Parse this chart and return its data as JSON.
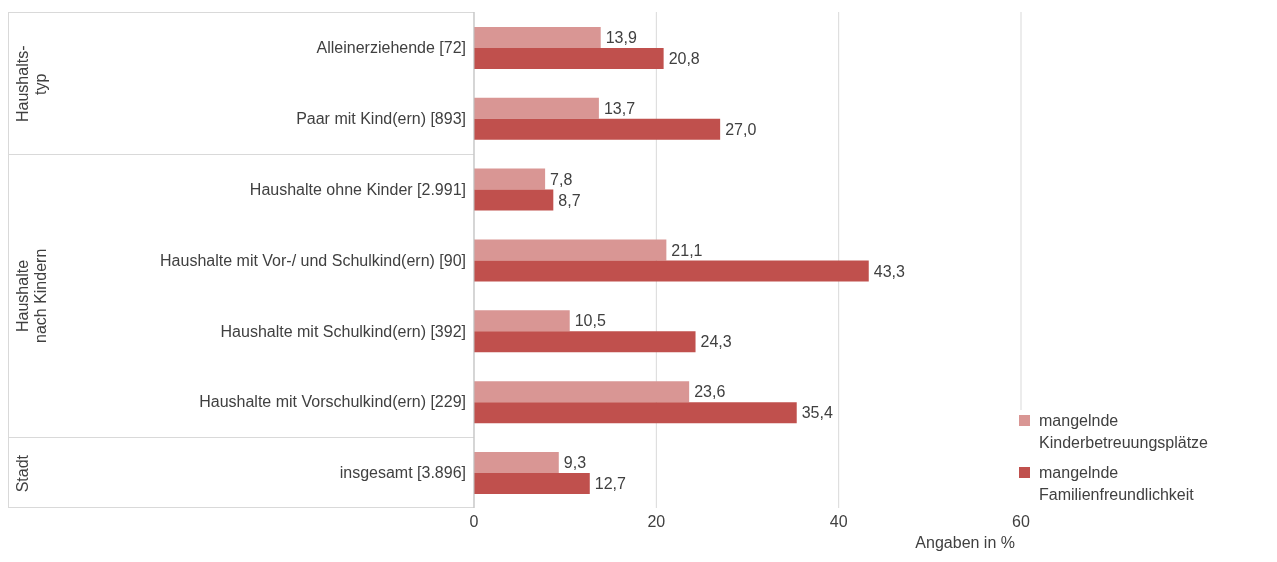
{
  "chart_data": {
    "type": "bar",
    "orientation": "horizontal",
    "xlabel": "Angaben in %",
    "categories": [
      "Alleinerziehende [72]",
      "Paar mit Kind(ern) [893]",
      "Haushalte ohne Kinder [2.991]",
      "Haushalte mit Vor-/ und Schulkind(ern) [90]",
      "Haushalte mit Schulkind(ern) [392]",
      "Haushalte mit Vorschulkind(ern) [229]",
      "insgesamt [3.896]"
    ],
    "series": [
      {
        "name": "mangelnde Kinderbetreuungsplätze",
        "color": "#d99694",
        "values": [
          13.9,
          13.7,
          7.8,
          21.1,
          10.5,
          23.6,
          9.3
        ],
        "value_labels": [
          "13,9",
          "13,7",
          "7,8",
          "21,1",
          "10,5",
          "23,6",
          "9,3"
        ]
      },
      {
        "name": "mangelnde Familienfreundlichkeit",
        "color": "#c0504d",
        "values": [
          20.8,
          27.0,
          8.7,
          43.3,
          24.3,
          35.4,
          12.7
        ],
        "value_labels": [
          "20,8",
          "27,0",
          "8,7",
          "43,3",
          "24,3",
          "35,4",
          "12,7"
        ]
      }
    ],
    "xlim": [
      0,
      60
    ],
    "xticks": [
      0,
      20,
      40,
      60
    ],
    "grid": "x",
    "legend": "bottom right",
    "annotations": [
      "Haushalts-typ",
      "Haushalte nach Kindern",
      "Stadt"
    ]
  }
}
